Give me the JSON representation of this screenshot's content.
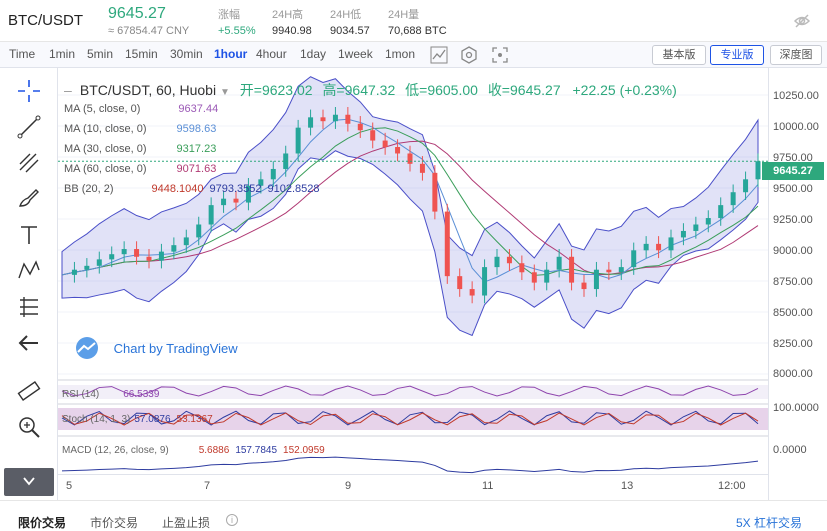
{
  "header": {
    "pair": "BTC/USDT",
    "price": "9645.27",
    "price_cny": "≈ 67854.47 CNY",
    "stats": [
      {
        "label": "涨幅",
        "value": "+5.55%",
        "up": true
      },
      {
        "label": "24H高",
        "value": "9940.98",
        "up": false
      },
      {
        "label": "24H低",
        "value": "9034.57",
        "up": false
      },
      {
        "label": "24H量",
        "value": "70,688 BTC",
        "up": false
      }
    ]
  },
  "toolbar": {
    "timeframes": [
      "Time",
      "1min",
      "5min",
      "15min",
      "30min",
      "1hour",
      "4hour",
      "1day",
      "1week",
      "1mon"
    ],
    "active_timeframe": "1hour",
    "view_buttons": [
      "基本版",
      "专业版",
      "深度图"
    ],
    "active_view": "专业版"
  },
  "chart": {
    "title": "BTC/USDT, 60, Huobi",
    "ohlc": {
      "open_label": "开=",
      "open": "9623.02",
      "high_label": "高=",
      "high": "9647.32",
      "low_label": "低=",
      "low": "9605.00",
      "close_label": "收=",
      "close": "9645.27",
      "change": "+22.25 (+0.23%)"
    },
    "indicators": [
      {
        "label": "MA (5, close, 0)",
        "value": "9637.44",
        "color": "#9b59b6"
      },
      {
        "label": "MA (10, close, 0)",
        "value": "9598.63",
        "color": "#5b8fd6"
      },
      {
        "label": "MA (30, close, 0)",
        "value": "9317.23",
        "color": "#3a9e5a"
      },
      {
        "label": "MA (60, close, 0)",
        "value": "9071.63",
        "color": "#b03a74"
      }
    ],
    "bb": {
      "label": "BB (20, 2)",
      "values": [
        "9448.1040",
        "9793.3552",
        "9102.8528"
      ]
    },
    "watermark": "Chart by TradingView",
    "last_price": "9645.27",
    "y_ticks": [
      "10250.00",
      "10000.00",
      "9750.00",
      "9500.00",
      "9250.00",
      "9000.00",
      "8750.00",
      "8500.00",
      "8250.00",
      "8000.00"
    ],
    "x_ticks": [
      "5",
      "7",
      "9",
      "11",
      "13",
      "12:00"
    ],
    "rsi": {
      "label": "RSI (14)",
      "value": "66.5339"
    },
    "stoch": {
      "label": "Stoch (14, 1, 3)",
      "v1": "57.0876",
      "v2": "53.1367",
      "scale": "100.0000"
    },
    "macd": {
      "label": "MACD (12, 26, close, 9)",
      "v1": "5.6886",
      "v2": "157.7845",
      "v3": "152.0959",
      "scale": "0.0000"
    },
    "chart_data": {
      "type": "line",
      "series": [
        {
          "values": [
            8760,
            8800,
            8830,
            8880,
            8920,
            8960,
            8900,
            8870,
            8940,
            8990,
            9050,
            9150,
            9300,
            9350,
            9320,
            9450,
            9500,
            9580,
            9700,
            9900,
            9980,
            9950,
            10000,
            9930,
            9880,
            9800,
            9750,
            9700,
            9620,
            9550,
            9250,
            8750,
            8650,
            8600,
            8820,
            8900,
            8850,
            8780,
            8700,
            8800,
            8900,
            8700,
            8650,
            8800,
            8780,
            8820,
            8950,
            9000,
            8950,
            9050,
            9100,
            9150,
            9200,
            9300,
            9400,
            9500,
            9640
          ]
        }
      ]
    }
  },
  "bottom": {
    "tabs": [
      "限价交易",
      "市价交易",
      "止盈止损"
    ],
    "right": "5X 杠杆交易"
  }
}
